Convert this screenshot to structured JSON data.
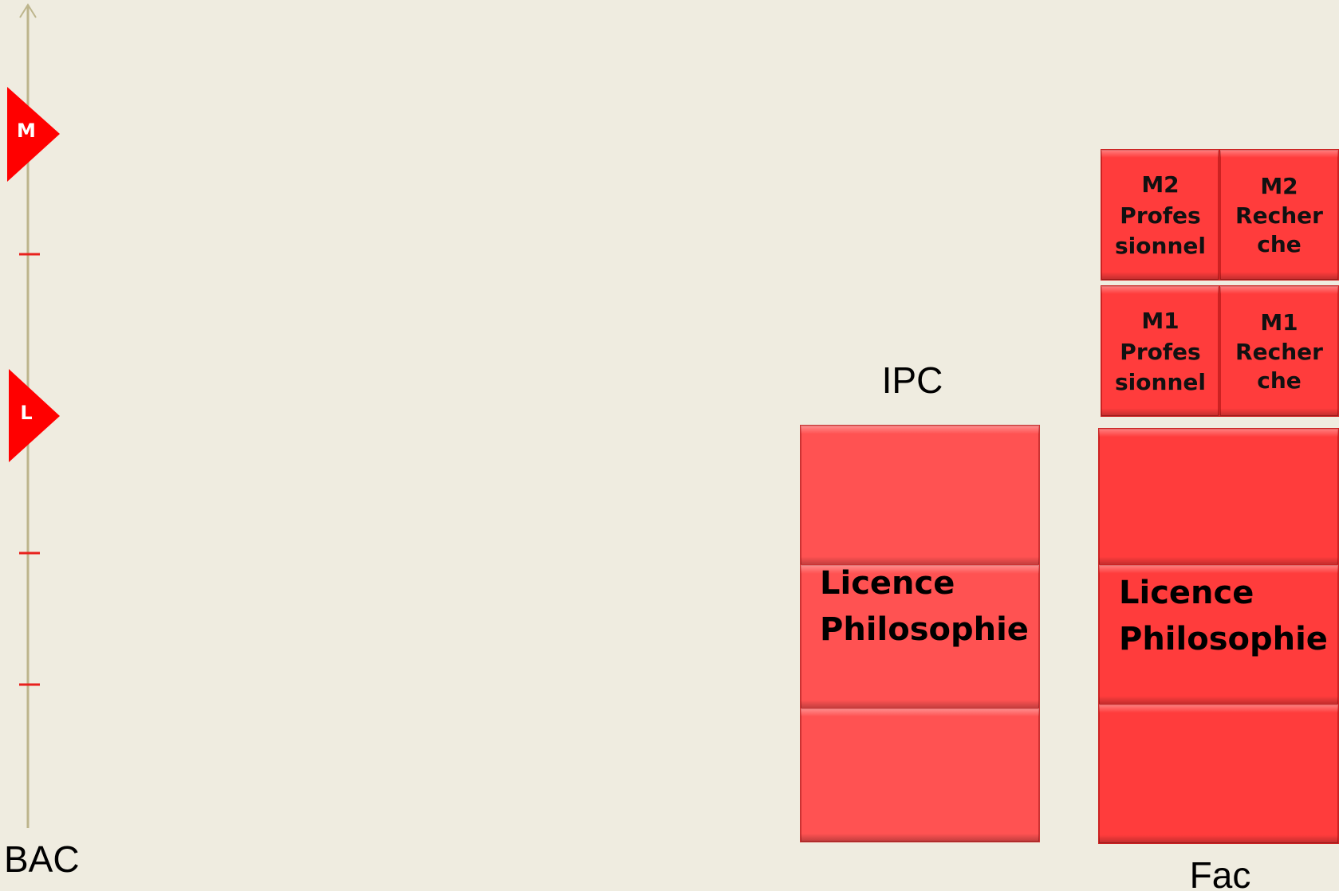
{
  "axis": {
    "bottom_label": "BAC",
    "markers": [
      "M",
      "L"
    ]
  },
  "columns": [
    {
      "label": "IPC",
      "block": [
        "Licence",
        "Philosophie"
      ]
    },
    {
      "label": "Fac",
      "block": [
        "Licence",
        "Philosophie"
      ],
      "masters": [
        [
          [
            "M2",
            "Profes",
            "sionnel"
          ],
          [
            "M2",
            "Recher",
            "che"
          ]
        ],
        [
          [
            "M1",
            "Profes",
            "sionnel"
          ],
          [
            "M1",
            "Recher",
            "che"
          ]
        ]
      ]
    }
  ]
}
